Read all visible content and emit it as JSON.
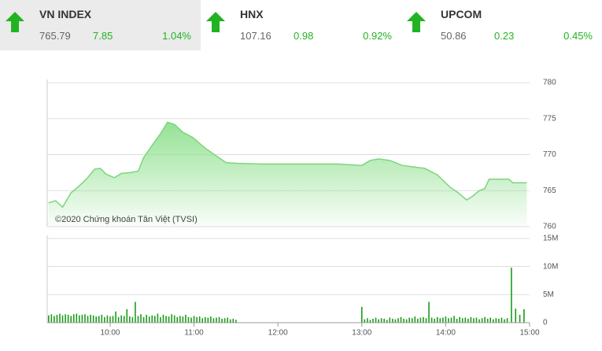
{
  "header": {
    "tickers": [
      {
        "name": "VN INDEX",
        "price": 765.79,
        "change": 7.85,
        "change_pct": "1.04%"
      },
      {
        "name": "HNX",
        "price": 107.16,
        "change": 0.98,
        "change_pct": "0.92%"
      },
      {
        "name": "UPCOM",
        "price": 50.86,
        "change": 0.23,
        "change_pct": "0.45%"
      }
    ]
  },
  "chart_data": [
    {
      "type": "line",
      "annotation": "©2020 Chứng khoán Tân Việt (TVSI)",
      "color": "#7bd67b",
      "x": [
        556,
        561,
        566,
        572,
        577,
        583,
        589,
        593,
        597,
        603,
        608,
        614,
        620,
        624,
        630,
        636,
        641,
        646,
        652,
        659,
        668,
        676,
        683,
        690,
        707,
        735,
        763,
        780,
        786,
        792,
        800,
        809,
        817,
        825,
        834,
        843,
        849,
        855,
        859,
        864,
        868,
        871,
        885,
        888,
        898
      ],
      "values": [
        763.3,
        763.6,
        762.7,
        764.7,
        765.5,
        766.6,
        768.0,
        768.1,
        767.3,
        766.8,
        767.4,
        767.5,
        767.7,
        769.6,
        771.3,
        772.9,
        774.5,
        774.2,
        773.1,
        772.4,
        770.9,
        769.8,
        768.9,
        768.8,
        768.7,
        768.7,
        768.7,
        768.5,
        769.2,
        769.4,
        769.2,
        768.5,
        768.3,
        768.1,
        767.2,
        765.5,
        764.7,
        763.7,
        764.2,
        765.0,
        765.3,
        766.6,
        766.6,
        766.1,
        766.1
      ],
      "xlim": [
        555,
        900
      ],
      "ylim": [
        760,
        780
      ],
      "yticks": [
        760,
        765,
        770,
        775,
        780
      ],
      "grid": true
    },
    {
      "type": "bar",
      "color": "#1a9c1a",
      "x": [
        556,
        558,
        560,
        562,
        564,
        566,
        568,
        570,
        572,
        574,
        576,
        578,
        580,
        582,
        584,
        586,
        588,
        590,
        592,
        594,
        596,
        598,
        600,
        602,
        604,
        606,
        608,
        610,
        612,
        614,
        616,
        618,
        620,
        622,
        624,
        626,
        628,
        630,
        632,
        634,
        636,
        638,
        640,
        642,
        644,
        646,
        648,
        650,
        652,
        654,
        656,
        658,
        660,
        662,
        664,
        666,
        668,
        670,
        672,
        674,
        676,
        678,
        680,
        682,
        684,
        686,
        688,
        690,
        780,
        782,
        784,
        786,
        788,
        790,
        792,
        794,
        796,
        798,
        800,
        802,
        804,
        806,
        808,
        810,
        812,
        814,
        816,
        818,
        820,
        822,
        824,
        826,
        828,
        830,
        832,
        834,
        836,
        838,
        840,
        842,
        844,
        846,
        848,
        850,
        852,
        854,
        856,
        858,
        860,
        862,
        864,
        866,
        868,
        870,
        872,
        874,
        876,
        878,
        880,
        882,
        884,
        887,
        890,
        893,
        896
      ],
      "values": [
        1.3,
        1.5,
        1.2,
        1.4,
        1.6,
        1.3,
        1.5,
        1.4,
        1.2,
        1.5,
        1.6,
        1.3,
        1.4,
        1.5,
        1.2,
        1.4,
        1.3,
        1.1,
        1.2,
        1.4,
        1.0,
        1.3,
        1.1,
        1.2,
        2.0,
        1.0,
        1.3,
        1.2,
        2.4,
        1.1,
        1.0,
        3.7,
        1.2,
        1.5,
        1.0,
        1.4,
        1.1,
        1.3,
        1.2,
        1.6,
        1.0,
        1.4,
        1.2,
        1.1,
        1.5,
        1.3,
        1.0,
        1.2,
        1.1,
        1.4,
        1.0,
        0.9,
        1.2,
        1.0,
        1.1,
        0.8,
        1.0,
        0.9,
        1.1,
        0.8,
        0.9,
        1.0,
        0.7,
        0.8,
        0.9,
        0.6,
        0.7,
        0.5,
        2.8,
        0.6,
        0.8,
        0.5,
        0.7,
        0.9,
        0.6,
        0.8,
        0.7,
        0.5,
        0.9,
        0.7,
        0.6,
        0.8,
        1.0,
        0.7,
        0.6,
        0.9,
        0.8,
        1.1,
        0.7,
        0.9,
        1.0,
        0.8,
        3.7,
        0.9,
        0.7,
        1.0,
        0.8,
        0.9,
        1.1,
        0.8,
        0.9,
        1.2,
        0.7,
        1.0,
        0.8,
        0.9,
        0.7,
        1.0,
        0.8,
        0.9,
        0.6,
        0.8,
        1.0,
        0.7,
        0.9,
        0.6,
        0.8,
        0.7,
        0.9,
        0.6,
        0.8,
        9.8,
        2.5,
        1.4,
        2.4
      ],
      "xlim": [
        555,
        900
      ],
      "xticks": [
        {
          "value": 600,
          "label": "10:00"
        },
        {
          "value": 660,
          "label": "11:00"
        },
        {
          "value": 720,
          "label": "12:00"
        },
        {
          "value": 780,
          "label": "13:00"
        },
        {
          "value": 840,
          "label": "14:00"
        },
        {
          "value": 900,
          "label": "15:00"
        }
      ],
      "ylim": [
        0,
        15
      ],
      "yticks": [
        0,
        {
          "value": 5,
          "label": "5M"
        },
        {
          "value": 10,
          "label": "10M"
        },
        {
          "value": 15,
          "label": "15M"
        }
      ],
      "grid": true
    }
  ]
}
